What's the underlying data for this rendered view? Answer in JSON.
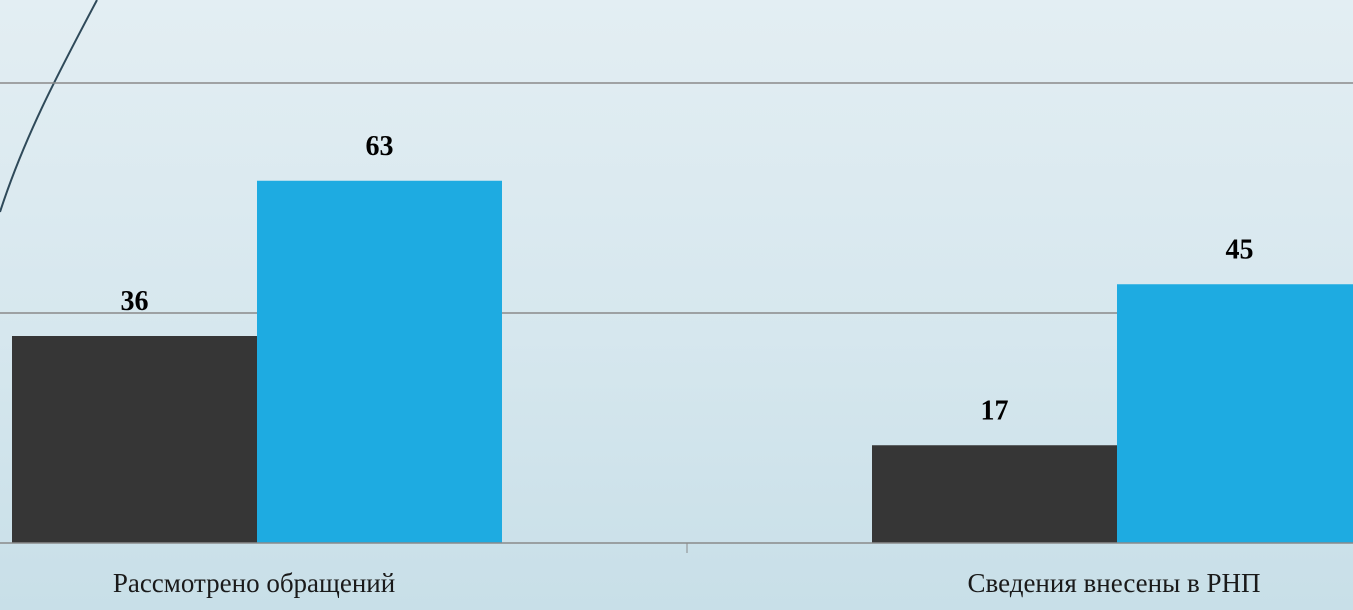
{
  "chart_data": {
    "type": "bar",
    "categories": [
      "Рассмотрено обращений",
      "Сведения внесены в РНП"
    ],
    "series": [
      {
        "values": [
          36,
          17
        ],
        "color": "#363636"
      },
      {
        "values": [
          63,
          45
        ],
        "color": "#1eabe1"
      }
    ],
    "ylim": [
      0,
      80
    ],
    "grid": true,
    "legend": "none"
  },
  "colors": {
    "gridline": "#8a8a8a",
    "axis": "#8a8a8a",
    "decorative_curve": "#2f4a5a"
  }
}
